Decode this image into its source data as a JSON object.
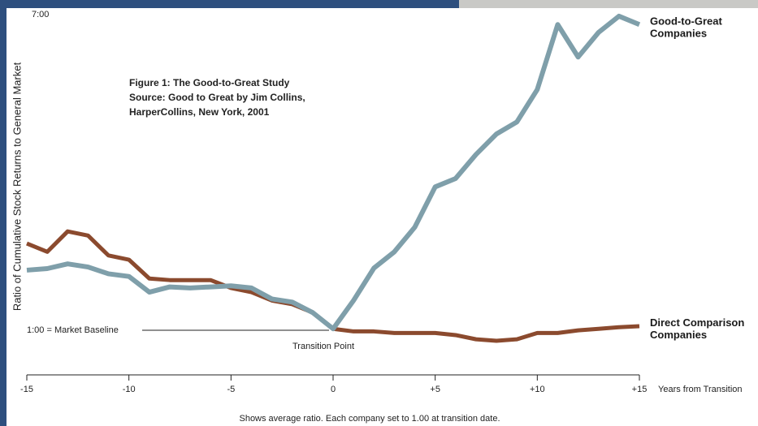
{
  "chart_data": {
    "type": "line",
    "figure_note": [
      "Figure 1: The Good-to-Great Study",
      "Source: Good to Great by Jim Collins,",
      "HarperCollins, New York, 2001"
    ],
    "y_label": "Ratio of Cumulative Stock Returns to General Market",
    "x_label": "Years from Transition",
    "footnote": "Shows average ratio. Each company set to 1.00 at transition date.",
    "baseline_label": "1:00 = Market Baseline",
    "transition_label": "Transition Point",
    "x": [
      -15,
      -14,
      -13,
      -12,
      -11,
      -10,
      -9,
      -8,
      -7,
      -6,
      -5,
      -4,
      -3,
      -2,
      -1,
      0,
      1,
      2,
      3,
      4,
      5,
      6,
      7,
      8,
      9,
      10,
      11,
      12,
      13,
      14,
      15
    ],
    "series": [
      {
        "name": "Direct Comparison Companies",
        "color": "#8b4a2e",
        "values": [
          2.63,
          2.47,
          2.86,
          2.78,
          2.4,
          2.32,
          1.96,
          1.93,
          1.93,
          1.93,
          1.78,
          1.7,
          1.54,
          1.47,
          1.31,
          1.0,
          0.95,
          0.95,
          0.92,
          0.92,
          0.92,
          0.88,
          0.8,
          0.77,
          0.8,
          0.92,
          0.92,
          0.97,
          1.0,
          1.03,
          1.05
        ]
      },
      {
        "name": "Good-to-Great Companies",
        "color": "#7f9faa",
        "values": [
          2.12,
          2.15,
          2.24,
          2.18,
          2.05,
          2.0,
          1.7,
          1.8,
          1.78,
          1.8,
          1.82,
          1.78,
          1.57,
          1.51,
          1.31,
          1.0,
          1.54,
          2.16,
          2.47,
          2.94,
          3.71,
          3.87,
          4.33,
          4.72,
          4.95,
          5.57,
          6.81,
          6.19,
          6.66,
          6.97,
          6.81
        ]
      }
    ],
    "xlim": [
      -15,
      15
    ],
    "xticks": [
      -15,
      -10,
      -5,
      0,
      {
        "value": 5,
        "label": "+5"
      },
      {
        "value": 10,
        "label": "+10"
      },
      {
        "value": 15,
        "label": "+15"
      }
    ],
    "ylim": [
      0.12,
      7
    ],
    "yticks": [
      {
        "value": 7,
        "label": "7:00"
      }
    ],
    "grid": false
  }
}
